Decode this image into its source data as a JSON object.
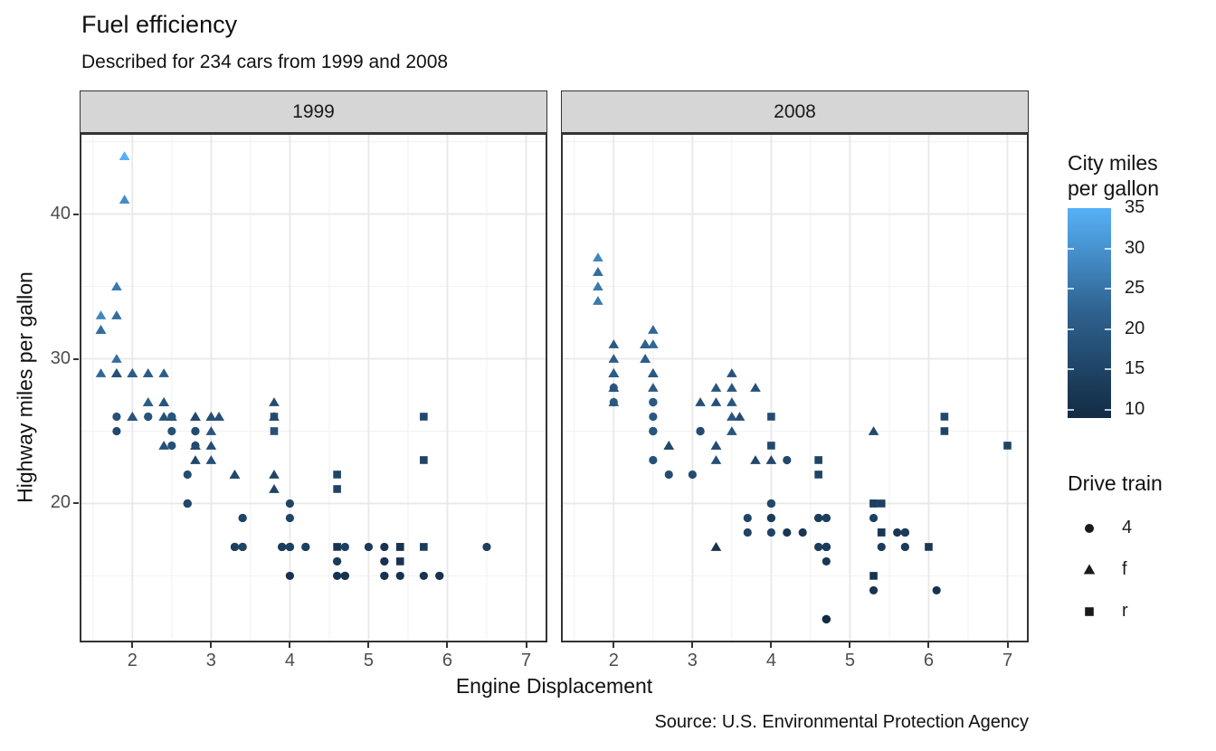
{
  "title": "Fuel efficiency",
  "subtitle": "Described for 234 cars from 1999 and 2008",
  "caption": "Source: U.S. Environmental Protection Agency",
  "axes": {
    "x_title": "Engine Displacement",
    "y_title": "Highway miles per gallon",
    "x_ticks": [
      2,
      3,
      4,
      5,
      6,
      7
    ],
    "x_minor": [
      1.5,
      2.5,
      3.5,
      4.5,
      5.5,
      6.5
    ],
    "y_ticks": [
      20,
      30,
      40
    ],
    "y_minor": [
      15,
      25,
      35,
      45
    ]
  },
  "facets": [
    "1999",
    "2008"
  ],
  "legend_color": {
    "title_lines": [
      "City miles",
      "per gallon"
    ],
    "ticks": [
      35,
      30,
      25,
      20,
      15,
      10
    ],
    "domain": [
      9,
      35
    ],
    "low": "#132B43",
    "mid": "#2E618E",
    "high": "#56B1F7"
  },
  "legend_shape": {
    "title": "Drive train",
    "items": [
      {
        "shape": "circle",
        "label": "4"
      },
      {
        "shape": "triangle",
        "label": "f"
      },
      {
        "shape": "square",
        "label": "r"
      }
    ]
  },
  "colors": {
    "panel_border": "#333333",
    "grid_major": "#e8e8e8",
    "grid_minor": "#f3f3f3",
    "tick": "#333333"
  },
  "chart_data": {
    "type": "scatter",
    "x": "displ",
    "y": "hwy",
    "color": "cty",
    "shape": "drv",
    "facet": "year",
    "x_domain": [
      1.33,
      7.27
    ],
    "y_domain": [
      10.4,
      45.6
    ],
    "shape_map": {
      "4": "circle",
      "f": "triangle",
      "r": "square"
    },
    "columns": [
      "displ",
      "hwy",
      "cty",
      "drv"
    ],
    "points": {
      "1999": [
        [
          1.8,
          29,
          18,
          "f"
        ],
        [
          1.8,
          29,
          21,
          "f"
        ],
        [
          2.8,
          26,
          16,
          "f"
        ],
        [
          2.8,
          26,
          18,
          "f"
        ],
        [
          1.8,
          26,
          18,
          "4"
        ],
        [
          1.8,
          25,
          16,
          "4"
        ],
        [
          2.8,
          25,
          15,
          "4"
        ],
        [
          2.8,
          25,
          17,
          "4"
        ],
        [
          2.8,
          24,
          15,
          "4"
        ],
        [
          5.7,
          17,
          13,
          "r"
        ],
        [
          5.7,
          26,
          16,
          "r"
        ],
        [
          5.7,
          23,
          15,
          "r"
        ],
        [
          5.7,
          15,
          11,
          "4"
        ],
        [
          6.5,
          17,
          14,
          "4"
        ],
        [
          2.4,
          27,
          19,
          "f"
        ],
        [
          3.1,
          26,
          18,
          "f"
        ],
        [
          2.4,
          24,
          18,
          "f"
        ],
        [
          3.0,
          24,
          17,
          "f"
        ],
        [
          3.3,
          22,
          16,
          "f"
        ],
        [
          3.3,
          22,
          16,
          "f"
        ],
        [
          3.8,
          22,
          15,
          "f"
        ],
        [
          3.8,
          21,
          15,
          "f"
        ],
        [
          3.9,
          17,
          13,
          "4"
        ],
        [
          3.9,
          17,
          14,
          "4"
        ],
        [
          5.2,
          17,
          11,
          "4"
        ],
        [
          5.2,
          15,
          11,
          "4"
        ],
        [
          3.9,
          17,
          13,
          "4"
        ],
        [
          5.2,
          16,
          11,
          "4"
        ],
        [
          5.9,
          15,
          11,
          "4"
        ],
        [
          5.2,
          15,
          11,
          "4"
        ],
        [
          5.2,
          16,
          11,
          "4"
        ],
        [
          5.9,
          15,
          11,
          "4"
        ],
        [
          4.6,
          17,
          11,
          "r"
        ],
        [
          5.4,
          17,
          11,
          "r"
        ],
        [
          4.0,
          17,
          14,
          "4"
        ],
        [
          4.0,
          19,
          15,
          "4"
        ],
        [
          4.0,
          17,
          14,
          "4"
        ],
        [
          4.2,
          17,
          14,
          "4"
        ],
        [
          4.2,
          17,
          14,
          "4"
        ],
        [
          4.6,
          16,
          13,
          "4"
        ],
        [
          4.6,
          16,
          13,
          "4"
        ],
        [
          5.4,
          15,
          11,
          "4"
        ],
        [
          3.8,
          26,
          18,
          "r"
        ],
        [
          3.8,
          25,
          18,
          "r"
        ],
        [
          4.6,
          21,
          15,
          "r"
        ],
        [
          4.6,
          22,
          15,
          "r"
        ],
        [
          1.6,
          33,
          28,
          "f"
        ],
        [
          1.6,
          32,
          24,
          "f"
        ],
        [
          1.6,
          32,
          25,
          "f"
        ],
        [
          1.6,
          29,
          23,
          "f"
        ],
        [
          1.6,
          32,
          24,
          "f"
        ],
        [
          2.4,
          26,
          18,
          "f"
        ],
        [
          2.4,
          27,
          18,
          "f"
        ],
        [
          2.5,
          26,
          18,
          "f"
        ],
        [
          2.5,
          26,
          18,
          "f"
        ],
        [
          2.0,
          26,
          19,
          "f"
        ],
        [
          2.0,
          29,
          19,
          "f"
        ],
        [
          4.0,
          20,
          15,
          "4"
        ],
        [
          4.7,
          17,
          14,
          "4"
        ],
        [
          4.0,
          15,
          11,
          "4"
        ],
        [
          4.6,
          15,
          11,
          "4"
        ],
        [
          5.4,
          17,
          11,
          "r"
        ],
        [
          5.4,
          16,
          11,
          "r"
        ],
        [
          4.0,
          17,
          14,
          "4"
        ],
        [
          5.0,
          17,
          13,
          "4"
        ],
        [
          2.4,
          29,
          21,
          "f"
        ],
        [
          2.4,
          27,
          19,
          "f"
        ],
        [
          3.0,
          26,
          18,
          "f"
        ],
        [
          3.0,
          25,
          19,
          "f"
        ],
        [
          3.3,
          17,
          15,
          "4"
        ],
        [
          3.3,
          17,
          14,
          "4"
        ],
        [
          3.1,
          26,
          18,
          "f"
        ],
        [
          3.8,
          26,
          16,
          "f"
        ],
        [
          3.8,
          27,
          17,
          "f"
        ],
        [
          2.5,
          25,
          18,
          "4"
        ],
        [
          2.5,
          24,
          18,
          "4"
        ],
        [
          2.2,
          26,
          21,
          "4"
        ],
        [
          2.2,
          26,
          19,
          "4"
        ],
        [
          2.5,
          26,
          19,
          "4"
        ],
        [
          2.5,
          26,
          19,
          "4"
        ],
        [
          2.7,
          20,
          15,
          "4"
        ],
        [
          2.7,
          20,
          16,
          "4"
        ],
        [
          3.4,
          19,
          15,
          "4"
        ],
        [
          3.4,
          17,
          15,
          "4"
        ],
        [
          2.2,
          29,
          21,
          "f"
        ],
        [
          2.2,
          27,
          21,
          "f"
        ],
        [
          3.0,
          26,
          18,
          "f"
        ],
        [
          3.0,
          26,
          18,
          "f"
        ],
        [
          2.2,
          27,
          21,
          "f"
        ],
        [
          2.2,
          29,
          21,
          "f"
        ],
        [
          3.0,
          26,
          18,
          "f"
        ],
        [
          1.8,
          30,
          24,
          "f"
        ],
        [
          1.8,
          33,
          24,
          "f"
        ],
        [
          1.8,
          35,
          26,
          "f"
        ],
        [
          4.7,
          15,
          11,
          "4"
        ],
        [
          3.0,
          23,
          18,
          "f"
        ],
        [
          2.7,
          22,
          17,
          "4"
        ],
        [
          2.7,
          20,
          16,
          "4"
        ],
        [
          3.4,
          17,
          15,
          "4"
        ],
        [
          3.4,
          19,
          15,
          "4"
        ],
        [
          4.7,
          15,
          11,
          "4"
        ],
        [
          4.7,
          15,
          11,
          "4"
        ],
        [
          2.0,
          29,
          21,
          "f"
        ],
        [
          2.0,
          26,
          19,
          "f"
        ],
        [
          2.8,
          24,
          17,
          "f"
        ],
        [
          1.9,
          44,
          33,
          "f"
        ],
        [
          2.0,
          29,
          21,
          "f"
        ],
        [
          2.0,
          26,
          19,
          "f"
        ],
        [
          2.8,
          23,
          16,
          "f"
        ],
        [
          2.8,
          24,
          17,
          "f"
        ],
        [
          1.9,
          44,
          35,
          "f"
        ],
        [
          1.9,
          41,
          29,
          "f"
        ],
        [
          2.0,
          29,
          21,
          "f"
        ],
        [
          2.0,
          26,
          19,
          "f"
        ],
        [
          1.8,
          29,
          21,
          "f"
        ],
        [
          1.8,
          29,
          18,
          "f"
        ],
        [
          2.8,
          26,
          16,
          "f"
        ]
      ],
      "2008": [
        [
          2.0,
          31,
          20,
          "f"
        ],
        [
          2.0,
          30,
          21,
          "f"
        ],
        [
          3.1,
          27,
          18,
          "f"
        ],
        [
          2.0,
          28,
          20,
          "4"
        ],
        [
          2.0,
          27,
          19,
          "4"
        ],
        [
          3.1,
          25,
          17,
          "4"
        ],
        [
          3.1,
          25,
          15,
          "4"
        ],
        [
          3.1,
          25,
          17,
          "4"
        ],
        [
          4.2,
          23,
          16,
          "4"
        ],
        [
          5.3,
          20,
          14,
          "r"
        ],
        [
          5.3,
          15,
          11,
          "r"
        ],
        [
          5.3,
          20,
          14,
          "r"
        ],
        [
          6.0,
          17,
          12,
          "r"
        ],
        [
          6.2,
          26,
          16,
          "r"
        ],
        [
          6.2,
          25,
          15,
          "r"
        ],
        [
          7.0,
          24,
          15,
          "r"
        ],
        [
          5.3,
          19,
          14,
          "4"
        ],
        [
          5.3,
          14,
          11,
          "4"
        ],
        [
          2.4,
          30,
          21,
          "f"
        ],
        [
          3.5,
          29,
          18,
          "f"
        ],
        [
          3.6,
          26,
          17,
          "f"
        ],
        [
          3.3,
          24,
          17,
          "f"
        ],
        [
          3.3,
          24,
          17,
          "f"
        ],
        [
          3.3,
          17,
          11,
          "f"
        ],
        [
          3.8,
          23,
          16,
          "f"
        ],
        [
          4.0,
          23,
          16,
          "f"
        ],
        [
          3.7,
          18,
          15,
          "4"
        ],
        [
          4.7,
          19,
          14,
          "4"
        ],
        [
          4.7,
          19,
          14,
          "4"
        ],
        [
          4.7,
          12,
          9,
          "4"
        ],
        [
          4.7,
          17,
          13,
          "4"
        ],
        [
          4.7,
          12,
          9,
          "4"
        ],
        [
          4.7,
          17,
          13,
          "4"
        ],
        [
          5.7,
          18,
          13,
          "4"
        ],
        [
          4.7,
          16,
          12,
          "4"
        ],
        [
          4.7,
          12,
          9,
          "4"
        ],
        [
          4.7,
          17,
          13,
          "4"
        ],
        [
          4.7,
          17,
          13,
          "4"
        ],
        [
          5.7,
          17,
          13,
          "4"
        ],
        [
          5.4,
          18,
          12,
          "r"
        ],
        [
          4.0,
          19,
          13,
          "4"
        ],
        [
          4.6,
          19,
          13,
          "4"
        ],
        [
          4.6,
          17,
          13,
          "4"
        ],
        [
          5.4,
          17,
          13,
          "4"
        ],
        [
          4.0,
          26,
          17,
          "r"
        ],
        [
          4.0,
          24,
          16,
          "r"
        ],
        [
          4.6,
          23,
          15,
          "r"
        ],
        [
          4.6,
          22,
          15,
          "r"
        ],
        [
          5.4,
          20,
          14,
          "r"
        ],
        [
          1.8,
          34,
          26,
          "f"
        ],
        [
          1.8,
          36,
          25,
          "f"
        ],
        [
          1.8,
          36,
          24,
          "f"
        ],
        [
          2.0,
          29,
          21,
          "f"
        ],
        [
          2.4,
          30,
          21,
          "f"
        ],
        [
          2.4,
          31,
          21,
          "f"
        ],
        [
          3.3,
          28,
          19,
          "f"
        ],
        [
          2.0,
          28,
          20,
          "f"
        ],
        [
          2.0,
          27,
          20,
          "f"
        ],
        [
          2.7,
          24,
          17,
          "f"
        ],
        [
          2.7,
          24,
          16,
          "f"
        ],
        [
          3.0,
          22,
          17,
          "4"
        ],
        [
          3.7,
          19,
          15,
          "4"
        ],
        [
          4.7,
          12,
          9,
          "4"
        ],
        [
          4.7,
          19,
          14,
          "4"
        ],
        [
          5.7,
          18,
          13,
          "4"
        ],
        [
          6.1,
          14,
          11,
          "4"
        ],
        [
          4.2,
          18,
          12,
          "4"
        ],
        [
          4.4,
          18,
          12,
          "4"
        ],
        [
          5.4,
          18,
          12,
          "r"
        ],
        [
          4.0,
          19,
          13,
          "4"
        ],
        [
          4.6,
          19,
          13,
          "4"
        ],
        [
          2.5,
          31,
          23,
          "f"
        ],
        [
          2.5,
          32,
          23,
          "f"
        ],
        [
          3.5,
          27,
          19,
          "f"
        ],
        [
          3.5,
          26,
          19,
          "f"
        ],
        [
          3.5,
          25,
          19,
          "f"
        ],
        [
          4.0,
          20,
          14,
          "4"
        ],
        [
          5.6,
          18,
          12,
          "4"
        ],
        [
          3.8,
          28,
          18,
          "f"
        ],
        [
          5.3,
          25,
          16,
          "f"
        ],
        [
          2.5,
          27,
          20,
          "4"
        ],
        [
          2.5,
          25,
          19,
          "4"
        ],
        [
          2.5,
          26,
          20,
          "4"
        ],
        [
          2.5,
          23,
          18,
          "4"
        ],
        [
          2.5,
          25,
          20,
          "4"
        ],
        [
          2.5,
          27,
          20,
          "4"
        ],
        [
          2.5,
          25,
          19,
          "4"
        ],
        [
          2.5,
          27,
          20,
          "4"
        ],
        [
          4.0,
          20,
          16,
          "4"
        ],
        [
          4.7,
          17,
          14,
          "4"
        ],
        [
          2.4,
          31,
          21,
          "f"
        ],
        [
          2.4,
          31,
          21,
          "f"
        ],
        [
          3.5,
          28,
          19,
          "f"
        ],
        [
          2.4,
          31,
          21,
          "f"
        ],
        [
          2.4,
          31,
          22,
          "f"
        ],
        [
          3.3,
          27,
          18,
          "f"
        ],
        [
          1.8,
          37,
          28,
          "f"
        ],
        [
          1.8,
          35,
          26,
          "f"
        ],
        [
          5.7,
          18,
          13,
          "4"
        ],
        [
          3.3,
          23,
          18,
          "f"
        ],
        [
          2.7,
          22,
          17,
          "4"
        ],
        [
          4.0,
          18,
          15,
          "4"
        ],
        [
          4.0,
          20,
          16,
          "4"
        ],
        [
          4.7,
          17,
          13,
          "4"
        ],
        [
          4.7,
          17,
          13,
          "4"
        ],
        [
          5.7,
          18,
          13,
          "4"
        ],
        [
          2.0,
          29,
          21,
          "f"
        ],
        [
          2.0,
          29,
          22,
          "f"
        ],
        [
          2.0,
          29,
          22,
          "f"
        ],
        [
          2.0,
          29,
          21,
          "f"
        ],
        [
          2.5,
          29,
          21,
          "f"
        ],
        [
          2.5,
          29,
          21,
          "f"
        ],
        [
          2.5,
          28,
          20,
          "f"
        ],
        [
          2.5,
          29,
          20,
          "f"
        ],
        [
          2.0,
          28,
          19,
          "f"
        ],
        [
          2.0,
          29,
          21,
          "f"
        ]
      ]
    }
  }
}
